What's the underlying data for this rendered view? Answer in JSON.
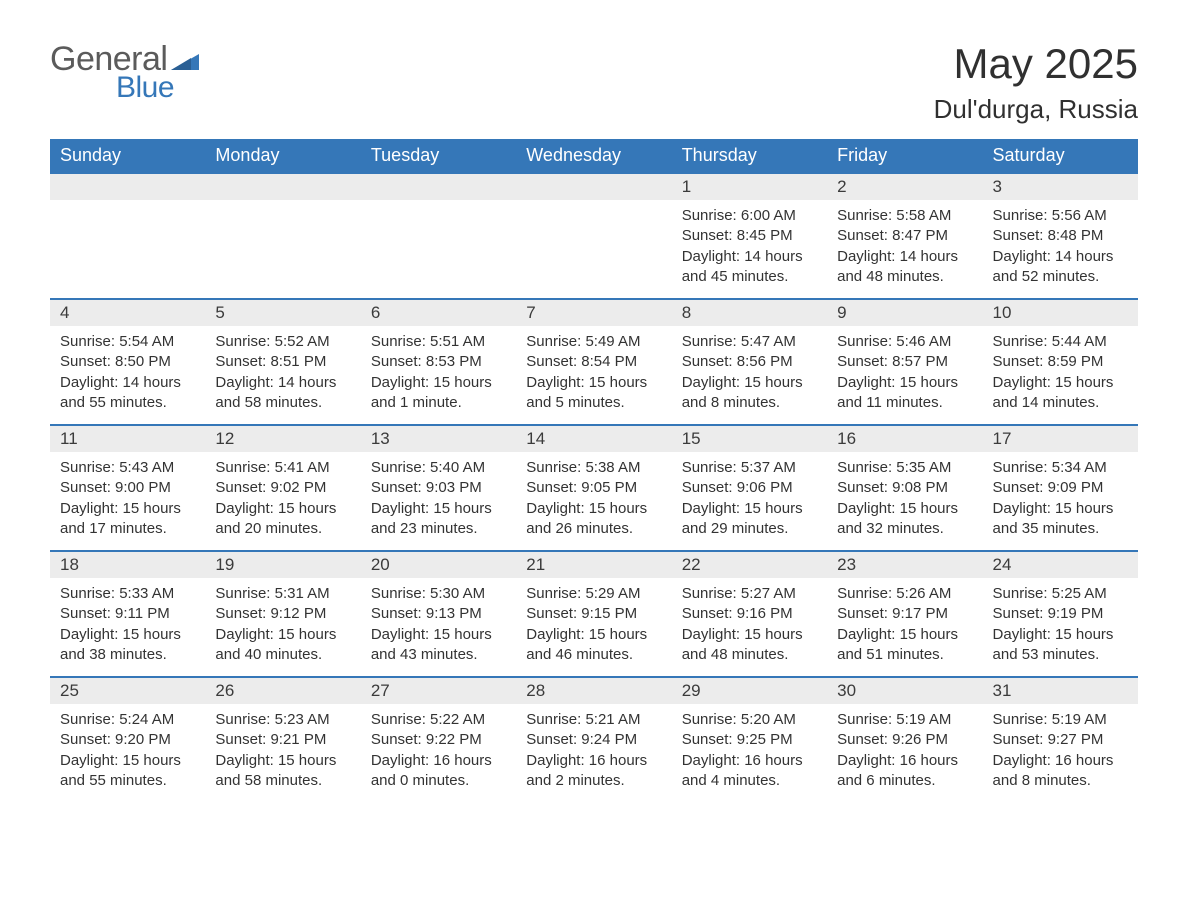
{
  "logo": {
    "text_general": "General",
    "text_blue": "Blue"
  },
  "title": "May 2025",
  "location": "Dul'durga, Russia",
  "colors": {
    "header_bg": "#3577b8",
    "header_text": "#ffffff",
    "daybar_bg": "#ececec",
    "daybar_border": "#3577b8",
    "body_text": "#333333",
    "logo_gray": "#5b5b5b",
    "logo_blue": "#3577b8",
    "page_bg": "#ffffff"
  },
  "weekdays": [
    "Sunday",
    "Monday",
    "Tuesday",
    "Wednesday",
    "Thursday",
    "Friday",
    "Saturday"
  ],
  "weeks": [
    [
      null,
      null,
      null,
      null,
      {
        "d": "1",
        "sunrise": "6:00 AM",
        "sunset": "8:45 PM",
        "daylight": "14 hours and 45 minutes."
      },
      {
        "d": "2",
        "sunrise": "5:58 AM",
        "sunset": "8:47 PM",
        "daylight": "14 hours and 48 minutes."
      },
      {
        "d": "3",
        "sunrise": "5:56 AM",
        "sunset": "8:48 PM",
        "daylight": "14 hours and 52 minutes."
      }
    ],
    [
      {
        "d": "4",
        "sunrise": "5:54 AM",
        "sunset": "8:50 PM",
        "daylight": "14 hours and 55 minutes."
      },
      {
        "d": "5",
        "sunrise": "5:52 AM",
        "sunset": "8:51 PM",
        "daylight": "14 hours and 58 minutes."
      },
      {
        "d": "6",
        "sunrise": "5:51 AM",
        "sunset": "8:53 PM",
        "daylight": "15 hours and 1 minute."
      },
      {
        "d": "7",
        "sunrise": "5:49 AM",
        "sunset": "8:54 PM",
        "daylight": "15 hours and 5 minutes."
      },
      {
        "d": "8",
        "sunrise": "5:47 AM",
        "sunset": "8:56 PM",
        "daylight": "15 hours and 8 minutes."
      },
      {
        "d": "9",
        "sunrise": "5:46 AM",
        "sunset": "8:57 PM",
        "daylight": "15 hours and 11 minutes."
      },
      {
        "d": "10",
        "sunrise": "5:44 AM",
        "sunset": "8:59 PM",
        "daylight": "15 hours and 14 minutes."
      }
    ],
    [
      {
        "d": "11",
        "sunrise": "5:43 AM",
        "sunset": "9:00 PM",
        "daylight": "15 hours and 17 minutes."
      },
      {
        "d": "12",
        "sunrise": "5:41 AM",
        "sunset": "9:02 PM",
        "daylight": "15 hours and 20 minutes."
      },
      {
        "d": "13",
        "sunrise": "5:40 AM",
        "sunset": "9:03 PM",
        "daylight": "15 hours and 23 minutes."
      },
      {
        "d": "14",
        "sunrise": "5:38 AM",
        "sunset": "9:05 PM",
        "daylight": "15 hours and 26 minutes."
      },
      {
        "d": "15",
        "sunrise": "5:37 AM",
        "sunset": "9:06 PM",
        "daylight": "15 hours and 29 minutes."
      },
      {
        "d": "16",
        "sunrise": "5:35 AM",
        "sunset": "9:08 PM",
        "daylight": "15 hours and 32 minutes."
      },
      {
        "d": "17",
        "sunrise": "5:34 AM",
        "sunset": "9:09 PM",
        "daylight": "15 hours and 35 minutes."
      }
    ],
    [
      {
        "d": "18",
        "sunrise": "5:33 AM",
        "sunset": "9:11 PM",
        "daylight": "15 hours and 38 minutes."
      },
      {
        "d": "19",
        "sunrise": "5:31 AM",
        "sunset": "9:12 PM",
        "daylight": "15 hours and 40 minutes."
      },
      {
        "d": "20",
        "sunrise": "5:30 AM",
        "sunset": "9:13 PM",
        "daylight": "15 hours and 43 minutes."
      },
      {
        "d": "21",
        "sunrise": "5:29 AM",
        "sunset": "9:15 PM",
        "daylight": "15 hours and 46 minutes."
      },
      {
        "d": "22",
        "sunrise": "5:27 AM",
        "sunset": "9:16 PM",
        "daylight": "15 hours and 48 minutes."
      },
      {
        "d": "23",
        "sunrise": "5:26 AM",
        "sunset": "9:17 PM",
        "daylight": "15 hours and 51 minutes."
      },
      {
        "d": "24",
        "sunrise": "5:25 AM",
        "sunset": "9:19 PM",
        "daylight": "15 hours and 53 minutes."
      }
    ],
    [
      {
        "d": "25",
        "sunrise": "5:24 AM",
        "sunset": "9:20 PM",
        "daylight": "15 hours and 55 minutes."
      },
      {
        "d": "26",
        "sunrise": "5:23 AM",
        "sunset": "9:21 PM",
        "daylight": "15 hours and 58 minutes."
      },
      {
        "d": "27",
        "sunrise": "5:22 AM",
        "sunset": "9:22 PM",
        "daylight": "16 hours and 0 minutes."
      },
      {
        "d": "28",
        "sunrise": "5:21 AM",
        "sunset": "9:24 PM",
        "daylight": "16 hours and 2 minutes."
      },
      {
        "d": "29",
        "sunrise": "5:20 AM",
        "sunset": "9:25 PM",
        "daylight": "16 hours and 4 minutes."
      },
      {
        "d": "30",
        "sunrise": "5:19 AM",
        "sunset": "9:26 PM",
        "daylight": "16 hours and 6 minutes."
      },
      {
        "d": "31",
        "sunrise": "5:19 AM",
        "sunset": "9:27 PM",
        "daylight": "16 hours and 8 minutes."
      }
    ]
  ],
  "labels": {
    "sunrise": "Sunrise: ",
    "sunset": "Sunset: ",
    "daylight": "Daylight: "
  }
}
